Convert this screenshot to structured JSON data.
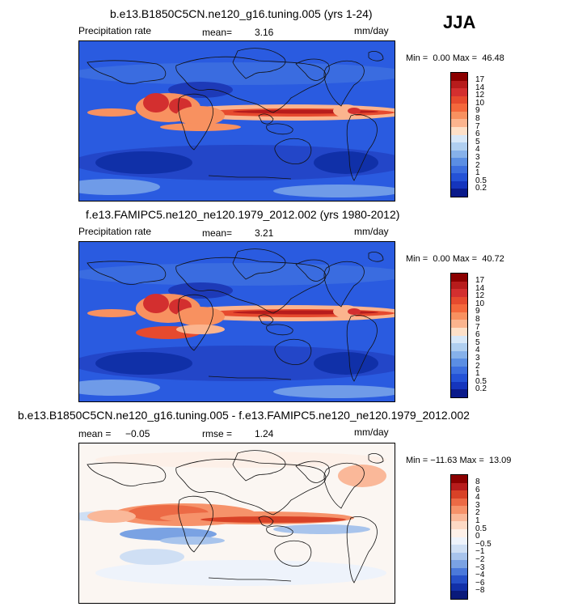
{
  "season": "JJA",
  "panels": [
    {
      "title": "b.e13.B1850C5CN.ne120_g16.tuning.005 (yrs 1-24)",
      "field": "Precipitation rate",
      "stat1_label": "mean=",
      "stat1_value": "3.16",
      "units": "mm/day",
      "min_label": "Min =",
      "min_value": "0.00",
      "max_label": "Max =",
      "max_value": "46.48",
      "bg": "#2a5be0",
      "colorbar": {
        "labels": [
          "17",
          "14",
          "12",
          "10",
          "9",
          "8",
          "7",
          "6",
          "5",
          "4",
          "3",
          "2",
          "1",
          "0.5",
          "0.2"
        ],
        "colors": [
          "#8b0000",
          "#b71c1c",
          "#d32f2f",
          "#e64a2e",
          "#f4683c",
          "#f89160",
          "#fbb48e",
          "#fde0c8",
          "#d8e8f8",
          "#b0cff0",
          "#86b1ea",
          "#5b8ee3",
          "#3c6ede",
          "#2452d6",
          "#1535bd",
          "#0a1a8a"
        ]
      }
    },
    {
      "title": "f.e13.FAMIPC5.ne120_ne120.1979_2012.002 (yrs 1980-2012)",
      "field": "Precipitation rate",
      "stat1_label": "mean=",
      "stat1_value": "3.21",
      "units": "mm/day",
      "min_label": "Min =",
      "min_value": "0.00",
      "max_label": "Max =",
      "max_value": "40.72",
      "bg": "#2a5be0",
      "colorbar": {
        "labels": [
          "17",
          "14",
          "12",
          "10",
          "9",
          "8",
          "7",
          "6",
          "5",
          "4",
          "3",
          "2",
          "1",
          "0.5",
          "0.2"
        ],
        "colors": [
          "#8b0000",
          "#b71c1c",
          "#d32f2f",
          "#e64a2e",
          "#f4683c",
          "#f89160",
          "#fbb48e",
          "#fde0c8",
          "#d8e8f8",
          "#b0cff0",
          "#86b1ea",
          "#5b8ee3",
          "#3c6ede",
          "#2452d6",
          "#1535bd",
          "#0a1a8a"
        ]
      }
    },
    {
      "title": "b.e13.B1850C5CN.ne120_g16.tuning.005 - f.e13.FAMIPC5.ne120_ne120.1979_2012.002",
      "field_label": "mean =",
      "field_value": "−0.05",
      "stat1_label": "rmse =",
      "stat1_value": "1.24",
      "units": "mm/day",
      "min_label": "Min =",
      "min_value": "−11.63",
      "max_label": "Max =",
      "max_value": "13.09",
      "bg": "#fbf6f2",
      "colorbar": {
        "labels": [
          "8",
          "6",
          "4",
          "3",
          "2",
          "1",
          "0.5",
          "0",
          "−0.5",
          "−1",
          "−2",
          "−3",
          "−4",
          "−6",
          "−8"
        ],
        "colors": [
          "#8b0000",
          "#b71c1c",
          "#d84227",
          "#ec6a45",
          "#f6926a",
          "#fab899",
          "#fdd9c4",
          "#fdf0e8",
          "#eef3fb",
          "#cfdff4",
          "#a8c4ec",
          "#7aa2e3",
          "#4b79da",
          "#2650c8",
          "#1230a8",
          "#0a1a7a"
        ]
      }
    }
  ]
}
